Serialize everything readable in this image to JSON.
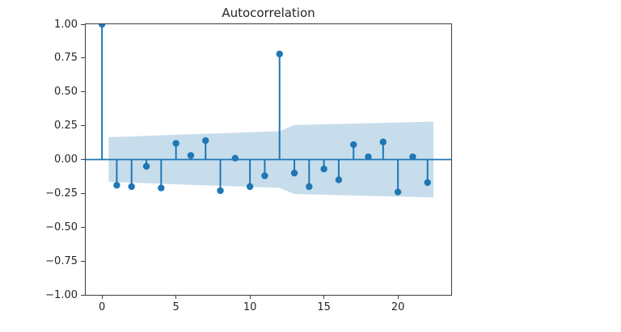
{
  "figure": {
    "background": "#ffffff"
  },
  "chart_data": {
    "type": "stem",
    "title": "Autocorrelation",
    "xlabel": "",
    "ylabel": "",
    "grid": false,
    "legend": null,
    "xlim": [
      -1.1,
      23.6
    ],
    "ylim": [
      -1.0,
      1.0
    ],
    "x": [
      0,
      1,
      2,
      3,
      4,
      5,
      6,
      7,
      8,
      9,
      10,
      11,
      12,
      13,
      14,
      15,
      16,
      17,
      18,
      19,
      20,
      21,
      22
    ],
    "values": [
      1.0,
      -0.19,
      -0.2,
      -0.05,
      -0.21,
      0.12,
      0.03,
      0.14,
      -0.23,
      0.01,
      -0.2,
      -0.12,
      0.78,
      -0.1,
      -0.2,
      -0.07,
      -0.15,
      0.11,
      0.02,
      0.13,
      -0.24,
      0.02,
      -0.17
    ],
    "confidence_band": {
      "x": [
        0.45,
        12.0,
        13.0,
        22.4
      ],
      "upper": [
        0.165,
        0.21,
        0.255,
        0.28
      ],
      "lower": [
        -0.165,
        -0.21,
        -0.255,
        -0.28
      ]
    },
    "yticks": [
      {
        "label": "1.00",
        "value": 1.0
      },
      {
        "label": "0.75",
        "value": 0.75
      },
      {
        "label": "0.50",
        "value": 0.5
      },
      {
        "label": "0.25",
        "value": 0.25
      },
      {
        "label": "0.00",
        "value": 0.0
      },
      {
        "label": "−0.25",
        "value": -0.25
      },
      {
        "label": "−0.50",
        "value": -0.5
      },
      {
        "label": "−0.75",
        "value": -0.75
      },
      {
        "label": "−1.00",
        "value": -1.0
      }
    ],
    "xticks": [
      {
        "label": "0",
        "value": 0
      },
      {
        "label": "5",
        "value": 5
      },
      {
        "label": "10",
        "value": 10
      },
      {
        "label": "15",
        "value": 15
      },
      {
        "label": "20",
        "value": 20
      }
    ],
    "colors": {
      "stem": "#1f77b4",
      "marker": "#1f77b4",
      "zero_line": "#1f77b4",
      "band": "#c7ddec",
      "spine": "#3c3c3c",
      "text": "#262626"
    },
    "marker_radius": 4.2,
    "stem_width": 2,
    "zero_line_width": 1.8
  }
}
